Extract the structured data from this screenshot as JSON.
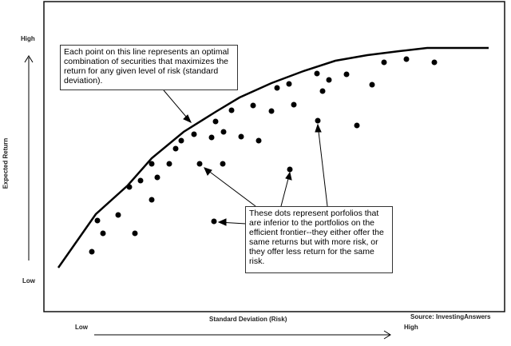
{
  "labels": {
    "y_high": "High",
    "y_low": "Low",
    "y_axis": "Expected Return",
    "x_axis": "Standard Deviation (Risk)",
    "x_low": "Low",
    "x_high": "High",
    "source": "Source: InvestingAnswers"
  },
  "annotations": {
    "frontier_note": "Each point on this line represents an optimal combination of securities that maximizes the return for any given level of risk (standard deviation).",
    "dots_note": "These dots represent porfolios that are inferior to the portfolios on the efficient frontier--they either offer the same returns but with more risk, or they offer less return for the same risk."
  }
}
